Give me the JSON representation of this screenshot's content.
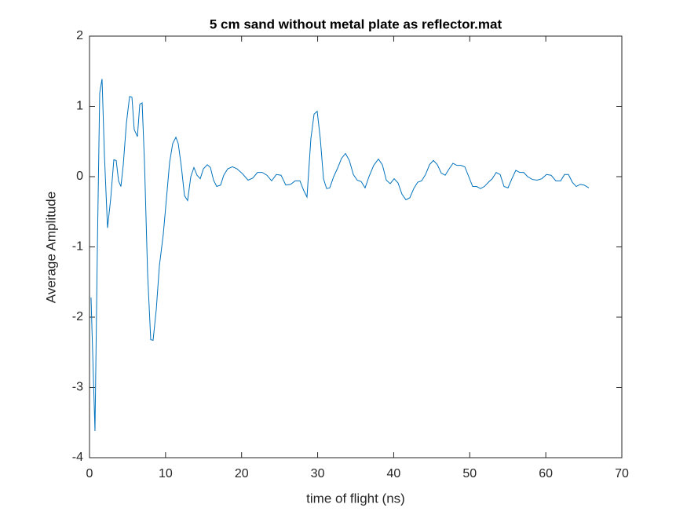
{
  "chart_data": {
    "type": "line",
    "title": "5 cm sand without metal plate as reflector.mat",
    "x_label": "time of flight (ns)",
    "y_label": "Average Amplitude",
    "xlim": [
      0,
      70
    ],
    "xticks": [
      0,
      10,
      20,
      30,
      40,
      50,
      60,
      70
    ],
    "ylim": [
      -4,
      2
    ],
    "yticks": [
      -4,
      -3,
      -2,
      -1,
      0,
      1,
      2
    ],
    "x": [
      0.2,
      0.72,
      1.03,
      1.34,
      1.65,
      1.96,
      2.37,
      2.79,
      3.2,
      3.51,
      3.82,
      4.13,
      4.44,
      4.85,
      5.27,
      5.58,
      5.88,
      6.3,
      6.61,
      6.92,
      7.23,
      7.64,
      8.05,
      8.36,
      8.78,
      9.19,
      9.7,
      10.12,
      10.53,
      10.94,
      11.36,
      11.67,
      12.08,
      12.49,
      12.9,
      13.32,
      13.73,
      14.14,
      14.56,
      14.97,
      15.49,
      15.9,
      16.31,
      16.73,
      17.24,
      17.65,
      18.17,
      18.79,
      19.41,
      20.13,
      20.85,
      21.47,
      22.09,
      22.71,
      23.33,
      23.95,
      24.57,
      25.19,
      25.81,
      26.43,
      27.05,
      27.67,
      28.18,
      28.6,
      29.11,
      29.53,
      29.94,
      30.35,
      30.77,
      31.18,
      31.59,
      32.11,
      32.62,
      33.14,
      33.66,
      34.17,
      34.69,
      35.2,
      35.72,
      36.24,
      36.75,
      37.37,
      37.99,
      38.51,
      39.03,
      39.54,
      40.06,
      40.57,
      41.09,
      41.61,
      42.12,
      42.64,
      43.15,
      43.67,
      44.19,
      44.71,
      45.22,
      45.74,
      46.26,
      46.77,
      47.29,
      47.8,
      48.32,
      48.84,
      49.35,
      49.87,
      50.38,
      50.9,
      51.41,
      51.93,
      52.45,
      52.96,
      53.48,
      54.0,
      54.51,
      55.03,
      55.54,
      56.06,
      56.58,
      57.09,
      57.61,
      58.23,
      58.85,
      59.47,
      60.09,
      60.7,
      61.32,
      61.95,
      62.46,
      62.98,
      63.49,
      64.01,
      64.53,
      65.04,
      65.66
    ],
    "series": [
      {
        "color": "#0072bd",
        "values": [
          -1.72,
          -3.62,
          -1.04,
          1.19,
          1.39,
          0.31,
          -0.73,
          -0.31,
          0.24,
          0.23,
          -0.06,
          -0.14,
          0.17,
          0.76,
          1.14,
          1.13,
          0.67,
          0.57,
          1.03,
          1.05,
          0.2,
          -1.38,
          -2.32,
          -2.33,
          -1.89,
          -1.27,
          -0.82,
          -0.31,
          0.2,
          0.47,
          0.56,
          0.47,
          0.14,
          -0.27,
          -0.34,
          0,
          0.13,
          0.02,
          -0.03,
          0.11,
          0.17,
          0.13,
          -0.05,
          -0.14,
          -0.12,
          0.02,
          0.11,
          0.14,
          0.11,
          0.04,
          -0.05,
          -0.02,
          0.06,
          0.06,
          0.02,
          -0.06,
          0.03,
          0.02,
          -0.12,
          -0.11,
          -0.06,
          -0.06,
          -0.2,
          -0.29,
          0.54,
          0.89,
          0.93,
          0.54,
          -0.03,
          -0.17,
          -0.16,
          0,
          0.12,
          0.26,
          0.33,
          0.23,
          0.03,
          -0.05,
          -0.07,
          -0.16,
          0,
          0.16,
          0.25,
          0.17,
          -0.05,
          -0.1,
          -0.03,
          -0.09,
          -0.25,
          -0.33,
          -0.3,
          -0.17,
          -0.08,
          -0.06,
          0.03,
          0.17,
          0.23,
          0.17,
          0.05,
          0.02,
          0.11,
          0.19,
          0.16,
          0.16,
          0.14,
          0,
          -0.14,
          -0.14,
          -0.17,
          -0.14,
          -0.08,
          -0.03,
          0.06,
          0.03,
          -0.14,
          -0.16,
          -0.03,
          0.09,
          0.06,
          0.06,
          0,
          -0.04,
          -0.05,
          -0.03,
          0.03,
          0.02,
          -0.06,
          -0.06,
          0.03,
          0.03,
          -0.08,
          -0.14,
          -0.11,
          -0.12,
          -0.16
        ]
      }
    ]
  }
}
